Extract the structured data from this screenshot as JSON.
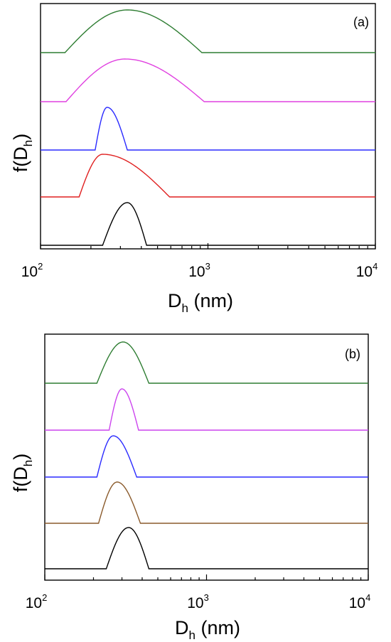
{
  "chart_data": [
    {
      "type": "line",
      "panel_label": "(a)",
      "xlabel": {
        "main": "D",
        "sub": "h",
        "unit": " (nm)"
      },
      "ylabel": {
        "main": "f(D",
        "sub": "h",
        "close": ")"
      },
      "x_scale": "log",
      "xlim": [
        100,
        10000
      ],
      "x_ticks": [
        {
          "base": "10",
          "exp": "2"
        },
        {
          "base": "10",
          "exp": "3"
        },
        {
          "base": "10",
          "exp": "4"
        }
      ],
      "y_ticks_shown": false,
      "curves_note_order": "top to bottom",
      "series": [
        {
          "color": "#2e7d32",
          "start": 140,
          "peak": 330,
          "end": 920,
          "rel_height": 1.0
        },
        {
          "color": "#e040e0",
          "start": 142,
          "peak": 320,
          "end": 950,
          "rel_height": 1.0
        },
        {
          "color": "#2a2aff",
          "start": 212,
          "peak": 250,
          "end": 330,
          "rel_height": 1.0
        },
        {
          "color": "#e02020",
          "start": 170,
          "peak": 235,
          "end": 590,
          "rel_height": 1.0
        },
        {
          "color": "#000000",
          "start": 235,
          "peak": 330,
          "end": 430,
          "rel_height": 1.0
        }
      ]
    },
    {
      "type": "line",
      "panel_label": "(b)",
      "xlabel": {
        "main": "D",
        "sub": "h",
        "unit": " (nm)"
      },
      "ylabel": {
        "main": "f(D",
        "sub": "h",
        "close": ")"
      },
      "x_scale": "log",
      "xlim": [
        100,
        10000
      ],
      "x_ticks": [
        {
          "base": "10",
          "exp": "2"
        },
        {
          "base": "10",
          "exp": "3"
        },
        {
          "base": "10",
          "exp": "4"
        }
      ],
      "y_ticks_shown": false,
      "series": [
        {
          "color": "#2e7d32",
          "start": 210,
          "peak": 305,
          "end": 440,
          "rel_height": 1.0
        },
        {
          "color": "#cc44ee",
          "start": 250,
          "peak": 300,
          "end": 380,
          "rel_height": 1.0
        },
        {
          "color": "#2a2aff",
          "start": 210,
          "peak": 265,
          "end": 370,
          "rel_height": 1.0
        },
        {
          "color": "#8a5a2b",
          "start": 215,
          "peak": 280,
          "end": 390,
          "rel_height": 1.0
        },
        {
          "color": "#000000",
          "start": 240,
          "peak": 330,
          "end": 440,
          "rel_height": 1.0
        }
      ]
    }
  ]
}
